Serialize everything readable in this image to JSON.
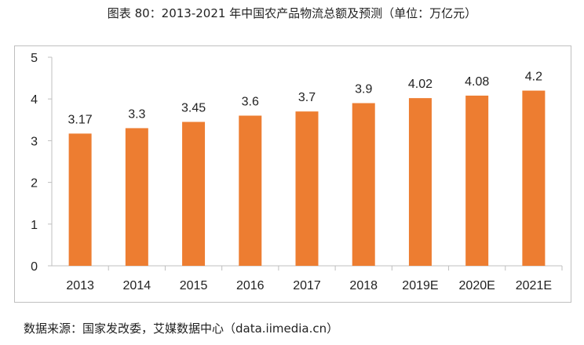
{
  "title": "图表 80：2013-2021 年中国农产品物流总额及预测（单位：万亿元）",
  "source": "数据来源：国家发改委，艾媒数据中心（data.iimedia.cn）",
  "chart_data": {
    "type": "bar",
    "title": "图表 80：2013-2021 年中国农产品物流总额及预测（单位：万亿元）",
    "categories": [
      "2013",
      "2014",
      "2015",
      "2016",
      "2017",
      "2018",
      "2019E",
      "2020E",
      "2021E"
    ],
    "values": [
      3.17,
      3.3,
      3.45,
      3.6,
      3.7,
      3.9,
      4.02,
      4.08,
      4.2
    ],
    "data_labels": [
      "3.17",
      "3.3",
      "3.45",
      "3.6",
      "3.7",
      "3.9",
      "4.02",
      "4.08",
      "4.2"
    ],
    "yticks": [
      "0",
      "1",
      "2",
      "3",
      "4",
      "5"
    ],
    "ylim": [
      0,
      5
    ],
    "grid": false,
    "bar_color": "#ED7D31",
    "xlabel": "",
    "ylabel": ""
  }
}
